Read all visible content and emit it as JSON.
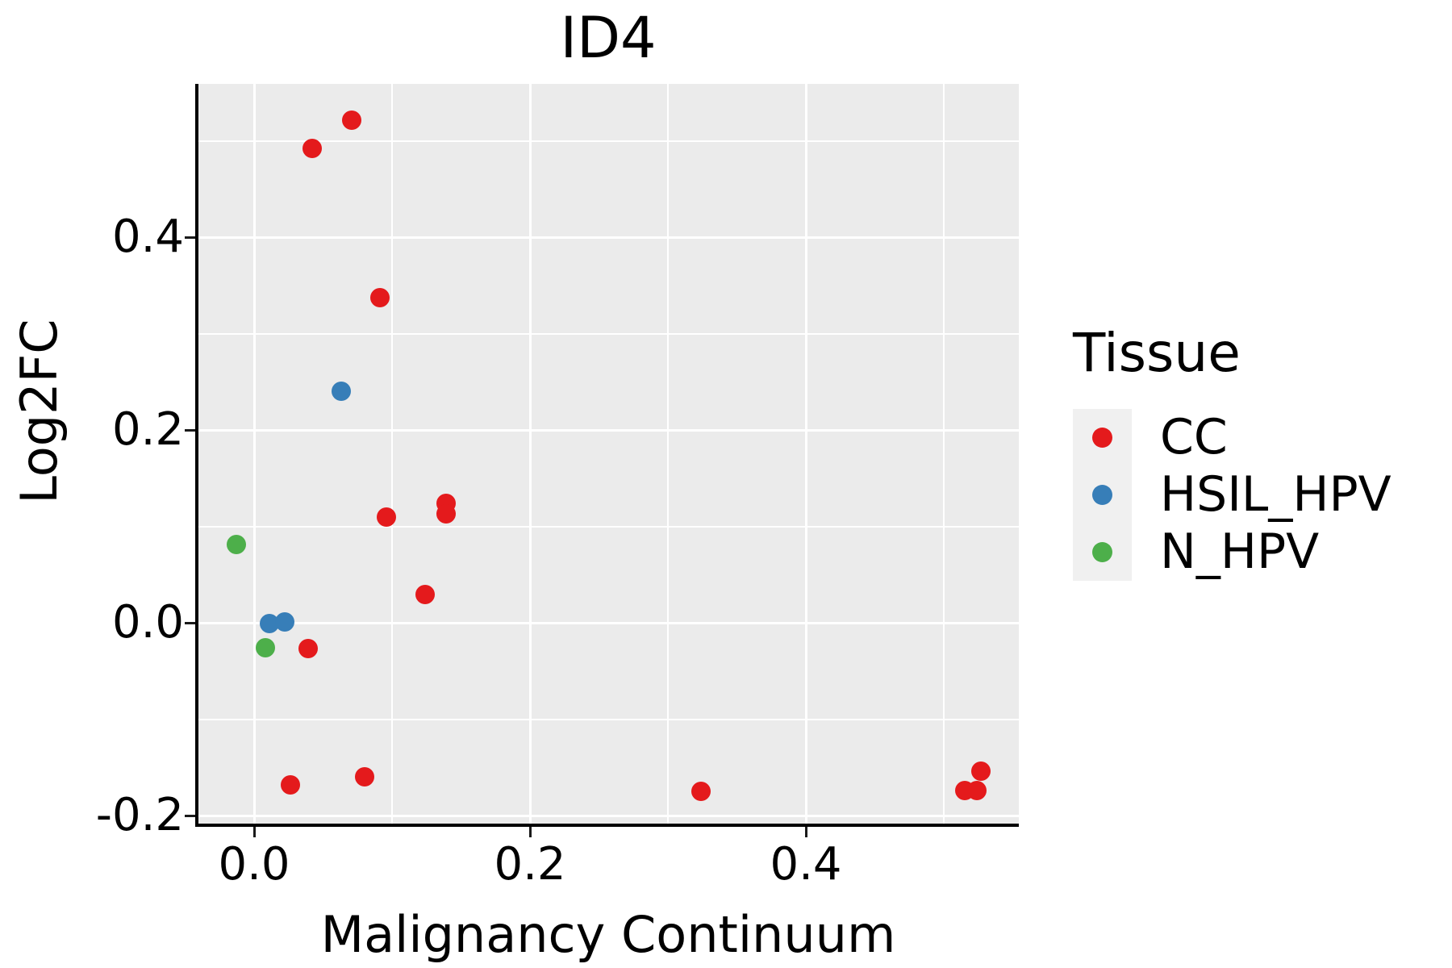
{
  "title": "ID4",
  "x_axis": {
    "label": "Malignancy Continuum",
    "tick_values": [
      0.0,
      0.2,
      0.4
    ],
    "tick_labels": [
      "0.0",
      "0.2",
      "0.4"
    ],
    "minor_gridlines": [
      0.1,
      0.3,
      0.5
    ],
    "range": [
      -0.04,
      0.554
    ]
  },
  "y_axis": {
    "label": "Log2FC",
    "tick_values": [
      0.4,
      0.2,
      0.0,
      -0.2
    ],
    "tick_labels": [
      "0.4",
      "0.2",
      "0.0",
      "-0.2"
    ],
    "minor_gridlines": [
      0.5,
      0.3,
      0.1,
      -0.1
    ],
    "range": [
      -0.208,
      0.559
    ]
  },
  "legend": {
    "title": "Tissue",
    "position": "right"
  },
  "colors": {
    "panel_background": "#EBEBEB",
    "gridline": "#FFFFFF",
    "axis_line": "#000000",
    "text": "#000000",
    "legend_key_background": "#F0F0F0",
    "cc": "#E41A1C",
    "hsil_hpv": "#377EB8",
    "n_hpv": "#4DAF4A"
  },
  "chart_data": {
    "type": "scatter",
    "title": "ID4",
    "xlabel": "Malignancy Continuum",
    "ylabel": "Log2FC",
    "xlim": [
      -0.04,
      0.554
    ],
    "ylim": [
      -0.208,
      0.559
    ],
    "grid": true,
    "legend_position": "right",
    "legend_title": "Tissue",
    "series": [
      {
        "name": "CC",
        "color": "#E41A1C",
        "points": [
          [
            0.071,
            0.521
          ],
          [
            0.042,
            0.492
          ],
          [
            0.091,
            0.337
          ],
          [
            0.139,
            0.124
          ],
          [
            0.139,
            0.113
          ],
          [
            0.096,
            0.11
          ],
          [
            0.124,
            0.029
          ],
          [
            0.039,
            -0.027
          ],
          [
            0.026,
            -0.168
          ],
          [
            0.08,
            -0.16
          ],
          [
            0.324,
            -0.175
          ],
          [
            0.527,
            -0.154
          ],
          [
            0.515,
            -0.174
          ],
          [
            0.524,
            -0.174
          ]
        ]
      },
      {
        "name": "HSIL_HPV",
        "color": "#377EB8",
        "points": [
          [
            0.063,
            0.24
          ],
          [
            0.011,
            -0.001
          ],
          [
            0.022,
            0.001
          ]
        ]
      },
      {
        "name": "N_HPV",
        "color": "#4DAF4A",
        "points": [
          [
            -0.013,
            0.081
          ],
          [
            0.008,
            -0.026
          ]
        ]
      }
    ]
  }
}
